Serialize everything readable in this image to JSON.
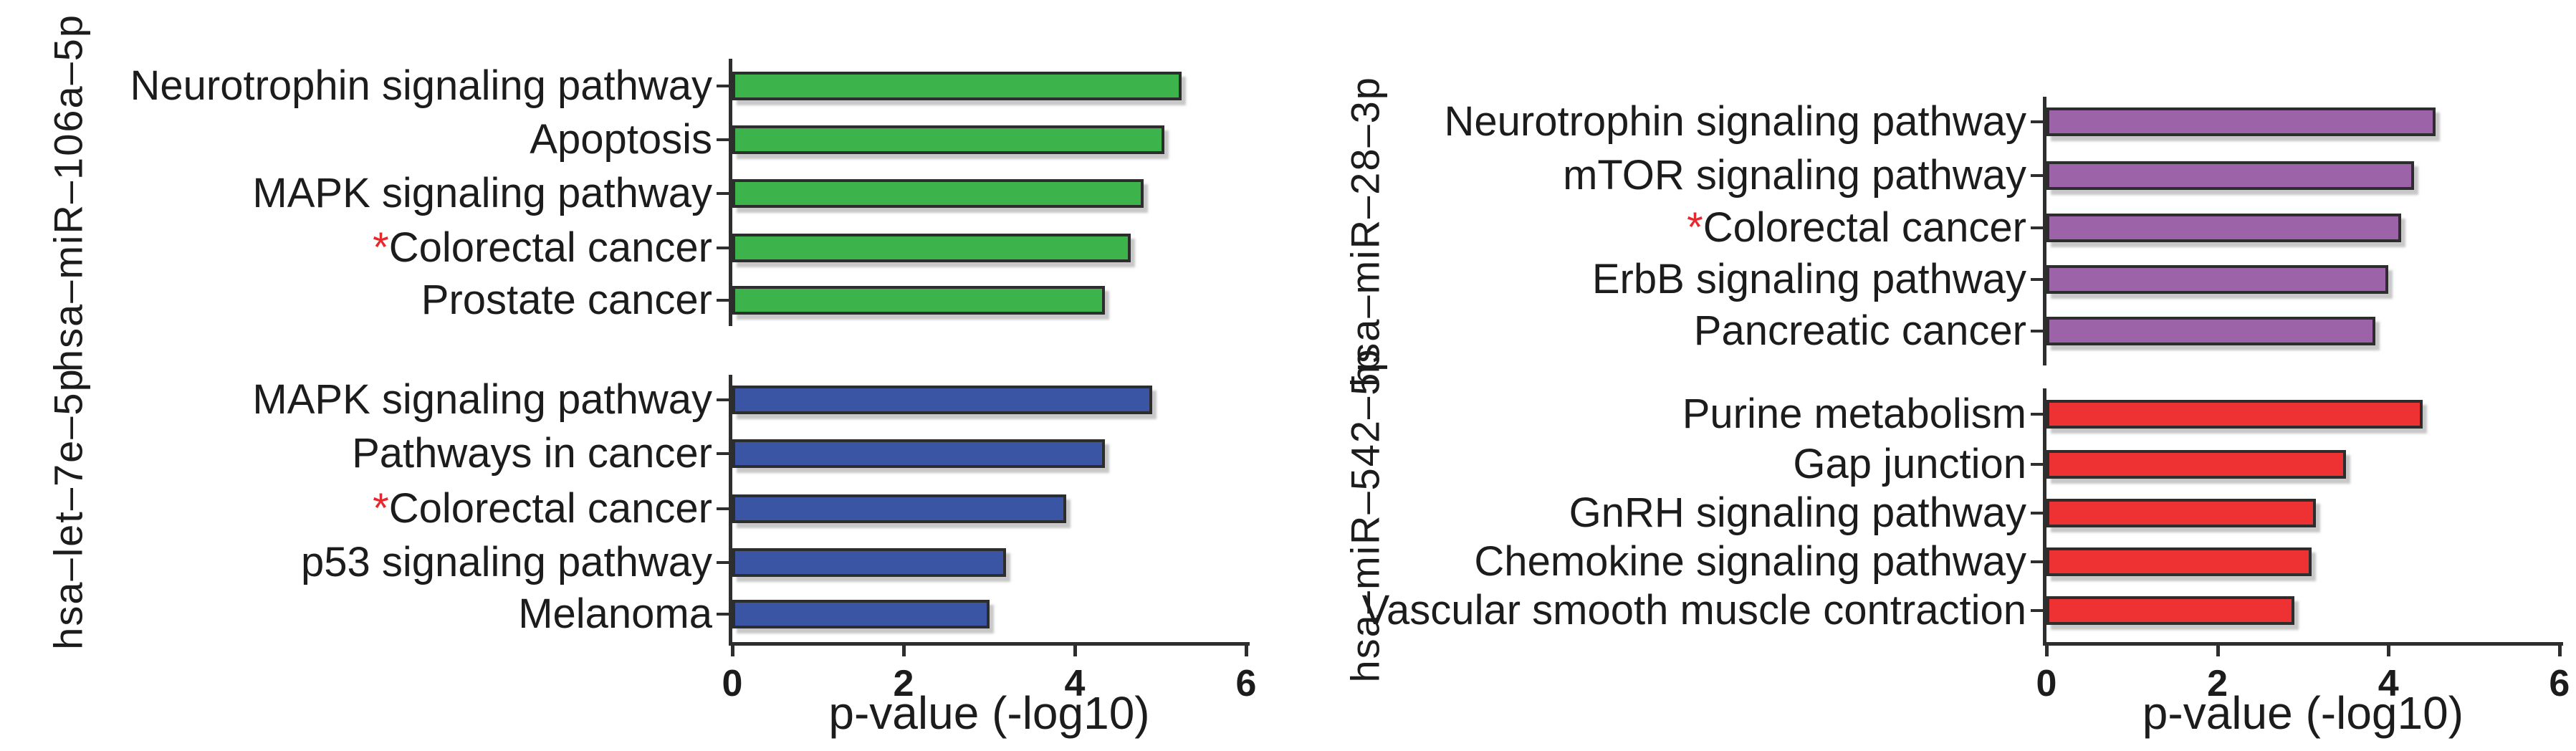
{
  "figure": {
    "xlabel": "p-value (-log10)",
    "x_ticks": [
      "0",
      "2",
      "4",
      "6"
    ],
    "x_max": 6,
    "star_glyph": "*",
    "star_color": "#e8262c",
    "axis_color": "#2e2e2e",
    "background_color": "#ffffff"
  },
  "chart_data": [
    {
      "type": "bar",
      "orientation": "horizontal",
      "group": "hsa–miR–106a–5p",
      "bar_color": "#3cb44b",
      "categories": [
        "Neurotrophin signaling pathway",
        "Apoptosis",
        "MAPK signaling pathway",
        "Colorectal cancer",
        "Prostate cancer"
      ],
      "starred": [
        false,
        false,
        false,
        true,
        false
      ],
      "values": [
        5.25,
        5.05,
        4.8,
        4.65,
        4.35
      ],
      "xlabel": "p-value (-log10)",
      "xlim": [
        0,
        6
      ],
      "grid": false,
      "legend": "none"
    },
    {
      "type": "bar",
      "orientation": "horizontal",
      "group": "hsa–let–7e–5p",
      "bar_color": "#3b55a5",
      "categories": [
        "MAPK signaling pathway",
        "Pathways in cancer",
        "Colorectal cancer",
        "p53 signaling pathway",
        "Melanoma"
      ],
      "starred": [
        false,
        false,
        true,
        false,
        false
      ],
      "values": [
        4.9,
        4.35,
        3.9,
        3.2,
        3.0
      ],
      "xlabel": "p-value (-log10)",
      "xlim": [
        0,
        6
      ],
      "grid": false,
      "legend": "none"
    },
    {
      "type": "bar",
      "orientation": "horizontal",
      "group": "hsa–miR–28–3p",
      "bar_color": "#9c63a8",
      "categories": [
        "Neurotrophin signaling pathway",
        "mTOR signaling pathway",
        "Colorectal cancer",
        "ErbB signaling pathway",
        "Pancreatic cancer"
      ],
      "starred": [
        false,
        false,
        true,
        false,
        false
      ],
      "values": [
        4.55,
        4.3,
        4.15,
        4.0,
        3.85
      ],
      "xlabel": "p-value (-log10)",
      "xlim": [
        0,
        6
      ],
      "grid": false,
      "legend": "none"
    },
    {
      "type": "bar",
      "orientation": "horizontal",
      "group": "hsa–miR–542–5p",
      "bar_color": "#ee3233",
      "categories": [
        "Purine metabolism",
        "Gap junction",
        "GnRH signaling pathway",
        "Chemokine signaling pathway",
        "Vascular smooth muscle contraction"
      ],
      "starred": [
        false,
        false,
        false,
        false,
        false
      ],
      "values": [
        4.4,
        3.5,
        3.15,
        3.1,
        2.9
      ],
      "xlabel": "p-value (-log10)",
      "xlim": [
        0,
        6
      ],
      "grid": false,
      "legend": "none"
    }
  ]
}
